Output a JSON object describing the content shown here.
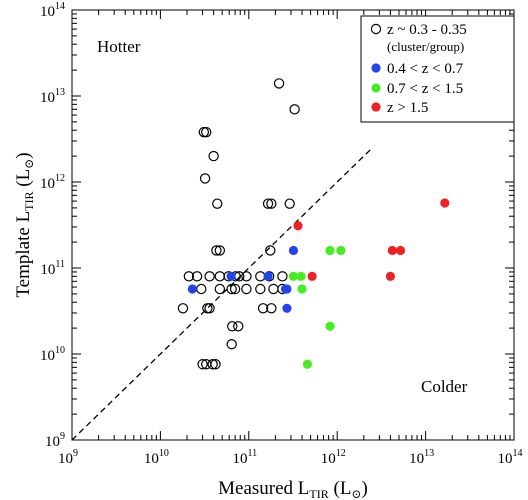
{
  "chart_data": {
    "type": "scatter",
    "x_scale": "log",
    "y_scale": "log",
    "xlim": [
      1000000000.0,
      100000000000000.0
    ],
    "ylim": [
      1000000000.0,
      100000000000000.0
    ],
    "x_ticks": [
      {
        "base": "10",
        "exp": "9",
        "value": 1000000000.0
      },
      {
        "base": "10",
        "exp": "10",
        "value": 10000000000.0
      },
      {
        "base": "10",
        "exp": "11",
        "value": 100000000000.0
      },
      {
        "base": "10",
        "exp": "12",
        "value": 1000000000000.0
      },
      {
        "base": "10",
        "exp": "13",
        "value": 10000000000000.0
      },
      {
        "base": "10",
        "exp": "14",
        "value": 100000000000000.0
      }
    ],
    "y_ticks": [
      {
        "base": "10",
        "exp": "9",
        "value": 1000000000.0
      },
      {
        "base": "10",
        "exp": "10",
        "value": 10000000000.0
      },
      {
        "base": "10",
        "exp": "11",
        "value": 100000000000.0
      },
      {
        "base": "10",
        "exp": "12",
        "value": 1000000000000.0
      },
      {
        "base": "10",
        "exp": "13",
        "value": 10000000000000.0
      },
      {
        "base": "10",
        "exp": "14",
        "value": 100000000000000.0
      }
    ],
    "xlabel": {
      "main": "Measured L",
      "sub": "TIR",
      "unit": " (L",
      "sun": "⊙",
      "close": ")"
    },
    "ylabel": {
      "main": "Template L",
      "sub": "TIR",
      "unit": " (L",
      "sun": "⊙",
      "close": ")"
    },
    "annotations": {
      "top_left": "Hotter",
      "bottom_right": "Colder"
    },
    "reference_line": {
      "style": "dashed",
      "x": [
        1000000000.0,
        2500000000000.0
      ],
      "y": [
        1000000000.0,
        2500000000000.0
      ]
    },
    "grid": false,
    "legend_position": "top-right",
    "series": [
      {
        "name": "z ~ 0.3 - 0.35",
        "note": "(cluster/group)",
        "marker": "open-circle",
        "color": "#000000",
        "points": [
          [
            220000000000.0,
            14000000000000.0
          ],
          [
            330000000000.0,
            7000000000000.0
          ],
          [
            31000000000.0,
            3800000000000.0
          ],
          [
            33000000000.0,
            3800000000000.0
          ],
          [
            40000000000.0,
            2000000000000.0
          ],
          [
            32000000000.0,
            1100000000000.0
          ],
          [
            44000000000.0,
            560000000000.0
          ],
          [
            165000000000.0,
            560000000000.0
          ],
          [
            180000000000.0,
            560000000000.0
          ],
          [
            290000000000.0,
            560000000000.0
          ],
          [
            43000000000.0,
            160000000000.0
          ],
          [
            47000000000.0,
            160000000000.0
          ],
          [
            175000000000.0,
            160000000000.0
          ],
          [
            21000000000.0,
            80000000000.0
          ],
          [
            26000000000.0,
            80000000000.0
          ],
          [
            36000000000.0,
            80000000000.0
          ],
          [
            47000000000.0,
            80000000000.0
          ],
          [
            59000000000.0,
            80000000000.0
          ],
          [
            71000000000.0,
            80000000000.0
          ],
          [
            78000000000.0,
            80000000000.0
          ],
          [
            94000000000.0,
            80000000000.0
          ],
          [
            135000000000.0,
            80000000000.0
          ],
          [
            170000000000.0,
            80000000000.0
          ],
          [
            240000000000.0,
            80000000000.0
          ],
          [
            29000000000.0,
            57000000000.0
          ],
          [
            47000000000.0,
            57000000000.0
          ],
          [
            64000000000.0,
            57000000000.0
          ],
          [
            70000000000.0,
            57000000000.0
          ],
          [
            94000000000.0,
            57000000000.0
          ],
          [
            135000000000.0,
            57000000000.0
          ],
          [
            190000000000.0,
            57000000000.0
          ],
          [
            240000000000.0,
            57000000000.0
          ],
          [
            18000000000.0,
            34000000000.0
          ],
          [
            34000000000.0,
            34000000000.0
          ],
          [
            36000000000.0,
            34000000000.0
          ],
          [
            145000000000.0,
            34000000000.0
          ],
          [
            180000000000.0,
            34000000000.0
          ],
          [
            65000000000.0,
            21000000000.0
          ],
          [
            76000000000.0,
            21000000000.0
          ],
          [
            64000000000.0,
            13000000000.0
          ],
          [
            30000000000.0,
            7600000000.0
          ],
          [
            33000000000.0,
            7600000000.0
          ],
          [
            39000000000.0,
            7600000000.0
          ],
          [
            42000000000.0,
            7600000000.0
          ]
        ]
      },
      {
        "name": "0.4 < z < 0.7",
        "marker": "filled-circle",
        "color": "#2244ee",
        "points": [
          [
            320000000000.0,
            160000000000.0
          ],
          [
            63000000000.0,
            80000000000.0
          ],
          [
            165000000000.0,
            80000000000.0
          ],
          [
            23000000000.0,
            57000000000.0
          ],
          [
            260000000000.0,
            57000000000.0
          ],
          [
            270000000000.0,
            57000000000.0
          ],
          [
            270000000000.0,
            34000000000.0
          ]
        ]
      },
      {
        "name": "0.7 < z < 1.5",
        "marker": "filled-circle",
        "color": "#44ee22",
        "points": [
          [
            830000000000.0,
            160000000000.0
          ],
          [
            1100000000000.0,
            160000000000.0
          ],
          [
            320000000000.0,
            80000000000.0
          ],
          [
            390000000000.0,
            80000000000.0
          ],
          [
            400000000000.0,
            57000000000.0
          ],
          [
            830000000000.0,
            21000000000.0
          ],
          [
            460000000000.0,
            7600000000.0
          ]
        ]
      },
      {
        "name": "z > 1.5",
        "marker": "filled-circle",
        "color": "#ee2222",
        "points": [
          [
            16500000000000.0,
            570000000000.0
          ],
          [
            360000000000.0,
            310000000000.0
          ],
          [
            4200000000000.0,
            160000000000.0
          ],
          [
            5200000000000.0,
            160000000000.0
          ],
          [
            520000000000.0,
            80000000000.0
          ],
          [
            4000000000000.0,
            80000000000.0
          ]
        ]
      }
    ]
  }
}
